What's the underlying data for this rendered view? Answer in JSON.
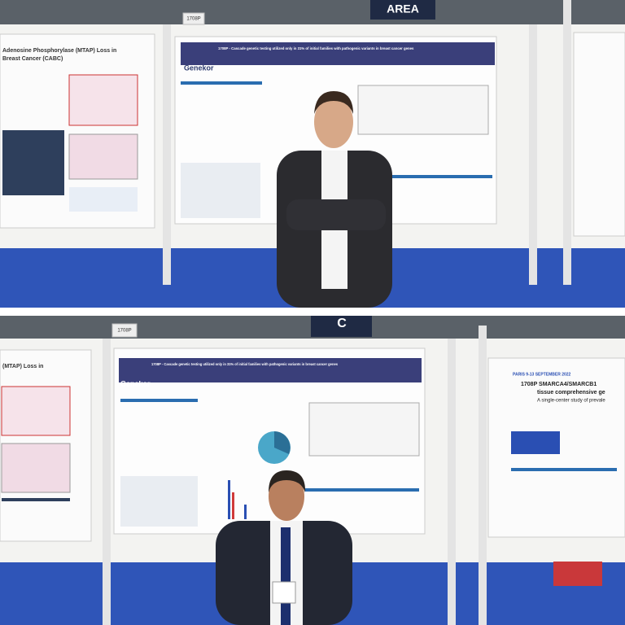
{
  "photos": [
    {
      "area_sign": "AREA",
      "booth_number": "1708P",
      "left_poster": {
        "title": "Adenosine Phosphorylase (MTAP) Loss in",
        "subtitle": "Breast Cancer (CABC)"
      },
      "main_poster": {
        "title": "1708P - Cascade genetic testing utilized only in 31% of initial families with pathogenic variants in breast cancer genes",
        "logo": "Genekor"
      }
    },
    {
      "area_sign": "C",
      "booth_number": "1708P",
      "left_poster": {
        "title": "(MTAP) Loss in"
      },
      "main_poster": {
        "title": "1708P - Cascade genetic testing utilized only in 31% of initial families with pathogenic variants in breast cancer genes",
        "logo": "Genekor"
      },
      "right_poster": {
        "event": "PARIS 9-13 SEPTEMBER 2022",
        "title": "1708P SMARCA4/SMARCB1",
        "subtitle": "tissue comprehensive ge",
        "subtitle2": "A single-center study of prevale"
      }
    }
  ]
}
